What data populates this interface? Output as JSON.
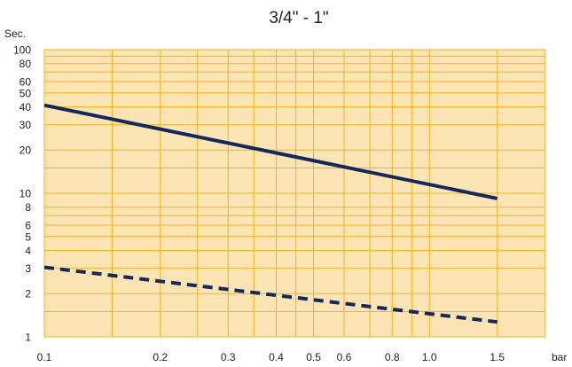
{
  "chart_data": {
    "type": "line",
    "title": "3/4\" - 1\"",
    "ylabel": "Sec.",
    "xlabel": "bar",
    "x_scale": "log",
    "y_scale": "log",
    "xlim": [
      0.1,
      2.0
    ],
    "ylim": [
      1,
      100
    ],
    "grid": true,
    "legend": "none",
    "x_ticks": [
      {
        "value": 0.1,
        "label": "0.1"
      },
      {
        "value": 0.2,
        "label": "0.2"
      },
      {
        "value": 0.3,
        "label": "0.3"
      },
      {
        "value": 0.4,
        "label": "0.4"
      },
      {
        "value": 0.5,
        "label": "0.5"
      },
      {
        "value": 0.6,
        "label": "0.6"
      },
      {
        "value": 0.8,
        "label": "0.8"
      },
      {
        "value": 1.0,
        "label": "1.0"
      },
      {
        "value": 1.5,
        "label": "1.5"
      }
    ],
    "x_grid": [
      0.1,
      0.15,
      0.2,
      0.25,
      0.3,
      0.35,
      0.4,
      0.45,
      0.5,
      0.6,
      0.7,
      0.8,
      0.9,
      1.0,
      1.5,
      2.0
    ],
    "y_ticks": [
      {
        "value": 1,
        "label": "1"
      },
      {
        "value": 2,
        "label": "2"
      },
      {
        "value": 3,
        "label": "3"
      },
      {
        "value": 4,
        "label": "4"
      },
      {
        "value": 5,
        "label": "5"
      },
      {
        "value": 6,
        "label": "6"
      },
      {
        "value": 8,
        "label": "8"
      },
      {
        "value": 10,
        "label": "10"
      },
      {
        "value": 20,
        "label": "20"
      },
      {
        "value": 30,
        "label": "30"
      },
      {
        "value": 40,
        "label": "40"
      },
      {
        "value": 50,
        "label": "50"
      },
      {
        "value": 60,
        "label": "60"
      },
      {
        "value": 80,
        "label": "80"
      },
      {
        "value": 100,
        "label": "100"
      }
    ],
    "y_grid": [
      1,
      1.5,
      2,
      3,
      4,
      5,
      6,
      7,
      8,
      10,
      15,
      20,
      30,
      40,
      50,
      60,
      70,
      80,
      90,
      100
    ],
    "series": [
      {
        "style": "solid",
        "color": "#14285a",
        "x": [
          0.1,
          1.5
        ],
        "y": [
          41,
          9.2
        ]
      },
      {
        "style": "dashed",
        "color": "#14285a",
        "x": [
          0.1,
          1.5
        ],
        "y": [
          3.05,
          1.27
        ]
      }
    ],
    "colors": {
      "background": "#fde4b4",
      "grid": "#f2b31d",
      "line": "#14285a",
      "text": "#222222"
    }
  }
}
